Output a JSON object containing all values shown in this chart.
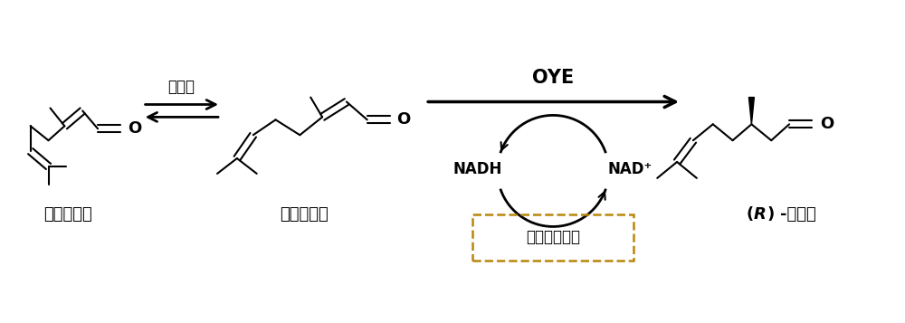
{
  "bg_color": "#ffffff",
  "line_color": "#000000",
  "figsize": [
    10.0,
    3.57
  ],
  "dpi": 100,
  "label_shiki_cis": "顺式柠檬鉔",
  "label_shiki_trans": "反式柠檬鉔",
  "label_product": "(R)-香茱鉔",
  "label_aminoacid": "氨基酸",
  "label_oye": "OYE",
  "label_nadh": "NADH",
  "label_nad": "NAD⁺",
  "label_coenzyme": "辅酶循环系统",
  "arrow_color": "#000000",
  "dashed_box_color": "#b8860b",
  "O_color": "#000000"
}
